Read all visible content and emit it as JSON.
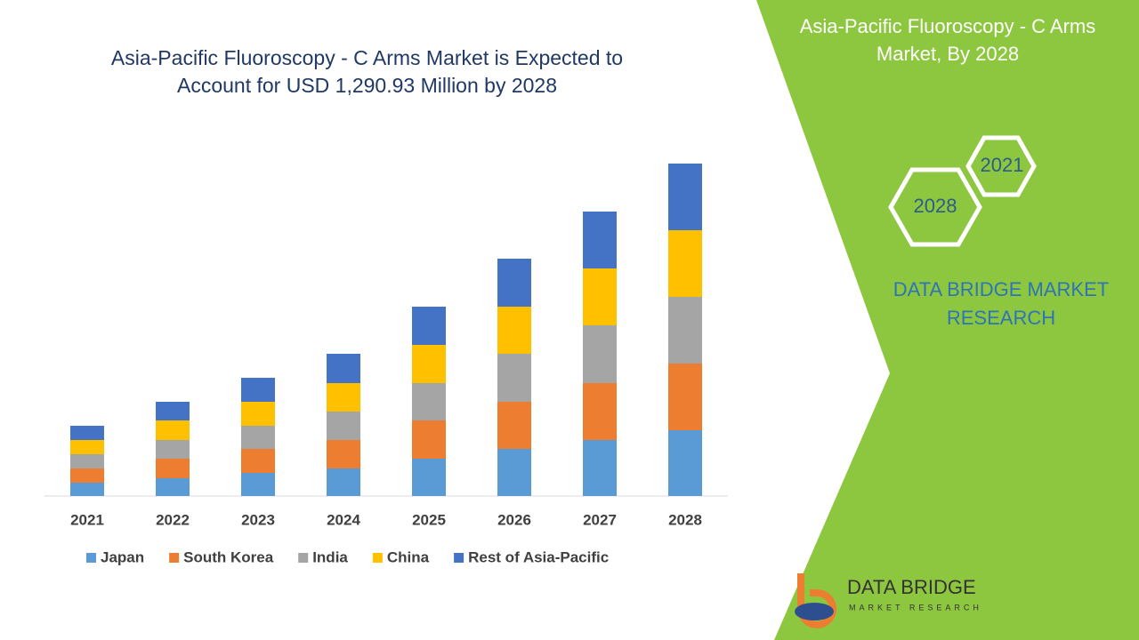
{
  "chart_data": {
    "type": "stacked_bar",
    "title": "Asia-Pacific Fluoroscopy - C Arms Market is Expected to Account for USD 1,290.93 Million by 2028",
    "categories": [
      "2021",
      "2022",
      "2023",
      "2024",
      "2025",
      "2026",
      "2027",
      "2028"
    ],
    "series": [
      {
        "name": "Japan",
        "color": "#5b9bd5",
        "values": [
          15,
          20,
          26,
          31,
          42,
          53,
          63,
          74
        ]
      },
      {
        "name": "South Korea",
        "color": "#ed7d31",
        "values": [
          16,
          22,
          27,
          32,
          43,
          53,
          64,
          75
        ]
      },
      {
        "name": "India",
        "color": "#a5a5a5",
        "values": [
          16,
          21,
          26,
          32,
          42,
          54,
          65,
          75
        ]
      },
      {
        "name": "China",
        "color": "#ffc000",
        "values": [
          16,
          22,
          27,
          32,
          43,
          53,
          64,
          75
        ]
      },
      {
        "name": "Rest of Asia-Pacific",
        "color": "#4472c4",
        "values": [
          16,
          21,
          27,
          33,
          43,
          54,
          64,
          75
        ]
      }
    ],
    "ylim": [
      0,
      400
    ]
  },
  "panel": {
    "title": "Asia-Pacific Fluoroscopy - C Arms Market, By 2028",
    "hex_start": "2021",
    "hex_end": "2028",
    "brand": "DATA BRIDGE MARKET RESEARCH",
    "logo_name": "DATA BRIDGE",
    "logo_sub": "MARKET RESEARCH"
  }
}
